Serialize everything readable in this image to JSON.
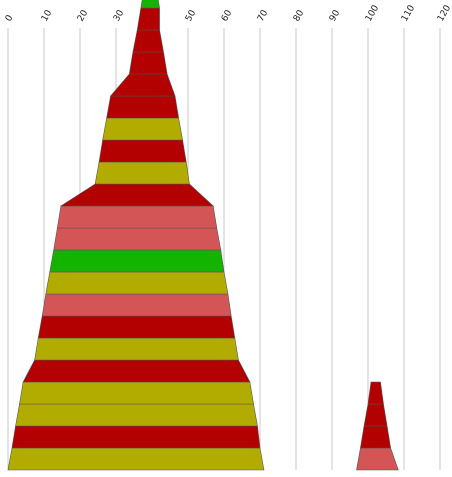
{
  "chart_data": {
    "type": "bar",
    "orientation": "stacked-pyramid",
    "title": "",
    "xlabel": "",
    "ylabel": "",
    "xlim": [
      0,
      120
    ],
    "ticks": [
      "0",
      "10",
      "20",
      "30",
      "40",
      "50",
      "60",
      "70",
      "80",
      "90",
      "100",
      "110",
      "120"
    ],
    "tick_values": [
      0,
      10,
      20,
      30,
      40,
      50,
      60,
      70,
      80,
      90,
      100,
      110,
      120
    ],
    "tick_label_rotation_deg": -60,
    "grid": "vertical",
    "grid_color": "#c8c8c8",
    "stroke_color": "#555555",
    "colors": {
      "dark_red": "#b30000",
      "olive": "#b3ac00",
      "green": "#14b300",
      "salmon": "#d45555",
      "pink": "#f4a9b4"
    },
    "stacks": [
      {
        "name": "",
        "segments": [
          {
            "left": 0.0,
            "right": 71.1,
            "color": "olive"
          },
          {
            "left": 1.1,
            "right": 70.0,
            "color": "dark_red"
          },
          {
            "left": 2.1,
            "right": 69.3,
            "color": "olive"
          },
          {
            "left": 3.2,
            "right": 68.2,
            "color": "olive"
          },
          {
            "left": 4.2,
            "right": 67.2,
            "color": "dark_red"
          },
          {
            "left": 7.4,
            "right": 64.0,
            "color": "olive"
          },
          {
            "left": 8.4,
            "right": 63.0,
            "color": "dark_red"
          },
          {
            "left": 9.5,
            "right": 62.0,
            "color": "salmon"
          },
          {
            "left": 10.5,
            "right": 61.1,
            "color": "olive"
          },
          {
            "left": 11.6,
            "right": 60.0,
            "color": "green"
          },
          {
            "left": 12.7,
            "right": 59.1,
            "color": "salmon"
          },
          {
            "left": 13.7,
            "right": 58.0,
            "color": "salmon"
          },
          {
            "left": 14.7,
            "right": 57.0,
            "color": "dark_red"
          },
          {
            "left": 24.2,
            "right": 50.4,
            "color": "olive"
          },
          {
            "left": 25.3,
            "right": 49.5,
            "color": "dark_red"
          },
          {
            "left": 26.3,
            "right": 48.5,
            "color": "olive"
          },
          {
            "left": 27.4,
            "right": 47.4,
            "color": "dark_red"
          },
          {
            "left": 28.5,
            "right": 46.4,
            "color": "dark_red"
          },
          {
            "left": 33.7,
            "right": 44.2,
            "color": "dark_red"
          },
          {
            "left": 34.7,
            "right": 43.2,
            "color": "dark_red"
          },
          {
            "left": 35.9,
            "right": 42.1,
            "color": "dark_red"
          },
          {
            "left": 36.9,
            "right": 42.1,
            "color": "green"
          },
          {
            "left": 37.9,
            "right": 41.1,
            "color": "pink"
          }
        ]
      },
      {
        "name": "",
        "segments": [
          {
            "left": 96.8,
            "right": 108.4,
            "color": "salmon"
          },
          {
            "left": 97.9,
            "right": 106.3,
            "color": "dark_red"
          },
          {
            "left": 98.9,
            "right": 105.3,
            "color": "dark_red"
          },
          {
            "left": 100.0,
            "right": 104.3,
            "color": "dark_red"
          }
        ]
      }
    ]
  }
}
